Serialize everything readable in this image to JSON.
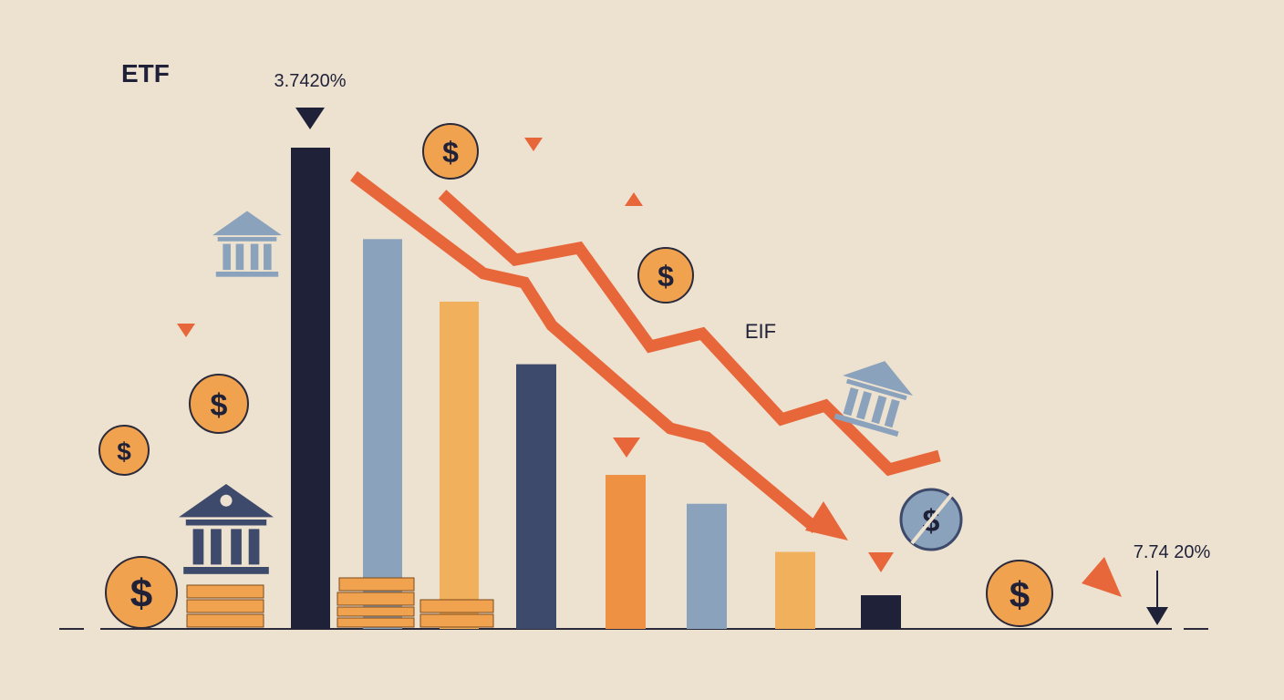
{
  "labels": {
    "top_left": "ETF",
    "peak_value": "3.7420%",
    "middle": "EIF",
    "end_value": "7.74 20%",
    "coin_symbol": "$"
  },
  "colors": {
    "background": "#ede1d0",
    "navy": "#1f2138",
    "slate_blue": "#3e4a6b",
    "steel_blue": "#8aa2bb",
    "gold": "#f1b05b",
    "orange": "#ee9142",
    "trend_red": "#e8673a",
    "coin": "#f0a24f"
  },
  "icons": [
    "bank-icon",
    "coin-icon",
    "coin-stack-icon",
    "down-triangle-icon",
    "up-triangle-icon",
    "down-arrow-icon"
  ],
  "chart_data": {
    "type": "bar",
    "title": "",
    "xlabel": "",
    "ylabel": "",
    "ylim": [
      0,
      100
    ],
    "grid": false,
    "values": [
      100,
      81,
      68,
      55,
      32,
      26,
      16,
      7
    ],
    "bar_colors": [
      "#1f2138",
      "#8aa2bb",
      "#f1b05b",
      "#3e4a6b",
      "#ee9142",
      "#8aa2bb",
      "#f1b05b",
      "#1f2138"
    ],
    "annotations": [
      "3.7420%",
      "EIF",
      "7.74 20%"
    ],
    "trend_lines": [
      {
        "name": "",
        "values": [
          100,
          73,
          61,
          59,
          38,
          31,
          20
        ]
      },
      {
        "name": "",
        "values": [
          100,
          81,
          83,
          62,
          46,
          48,
          33,
          30,
          20
        ]
      }
    ]
  }
}
